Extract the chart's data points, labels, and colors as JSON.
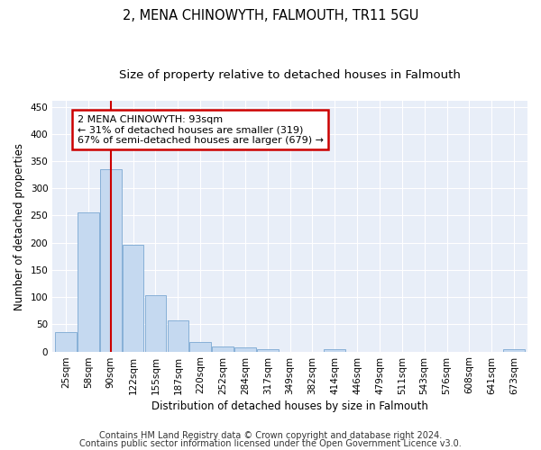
{
  "title1": "2, MENA CHINOWYTH, FALMOUTH, TR11 5GU",
  "title2": "Size of property relative to detached houses in Falmouth",
  "xlabel": "Distribution of detached houses by size in Falmouth",
  "ylabel": "Number of detached properties",
  "categories": [
    "25sqm",
    "58sqm",
    "90sqm",
    "122sqm",
    "155sqm",
    "187sqm",
    "220sqm",
    "252sqm",
    "284sqm",
    "317sqm",
    "349sqm",
    "382sqm",
    "414sqm",
    "446sqm",
    "479sqm",
    "511sqm",
    "543sqm",
    "576sqm",
    "608sqm",
    "641sqm",
    "673sqm"
  ],
  "values": [
    35,
    256,
    335,
    196,
    103,
    57,
    18,
    10,
    7,
    5,
    0,
    0,
    4,
    0,
    0,
    0,
    0,
    0,
    0,
    0,
    4
  ],
  "bar_color": "#c5d9f0",
  "bar_edge_color": "#7aa8d2",
  "property_line_x": 2,
  "annotation_text": "2 MENA CHINOWYTH: 93sqm\n← 31% of detached houses are smaller (319)\n67% of semi-detached houses are larger (679) →",
  "annotation_box_color": "#ffffff",
  "annotation_box_edge": "#cc0000",
  "line_color": "#cc0000",
  "ylim": [
    0,
    460
  ],
  "yticks": [
    0,
    50,
    100,
    150,
    200,
    250,
    300,
    350,
    400,
    450
  ],
  "footer1": "Contains HM Land Registry data © Crown copyright and database right 2024.",
  "footer2": "Contains public sector information licensed under the Open Government Licence v3.0.",
  "background_color": "#e8eef8",
  "grid_color": "#ffffff",
  "fig_background": "#ffffff",
  "title1_fontsize": 10.5,
  "title2_fontsize": 9.5,
  "tick_fontsize": 7.5,
  "ylabel_fontsize": 8.5,
  "xlabel_fontsize": 8.5,
  "annotation_fontsize": 8,
  "footer_fontsize": 7
}
